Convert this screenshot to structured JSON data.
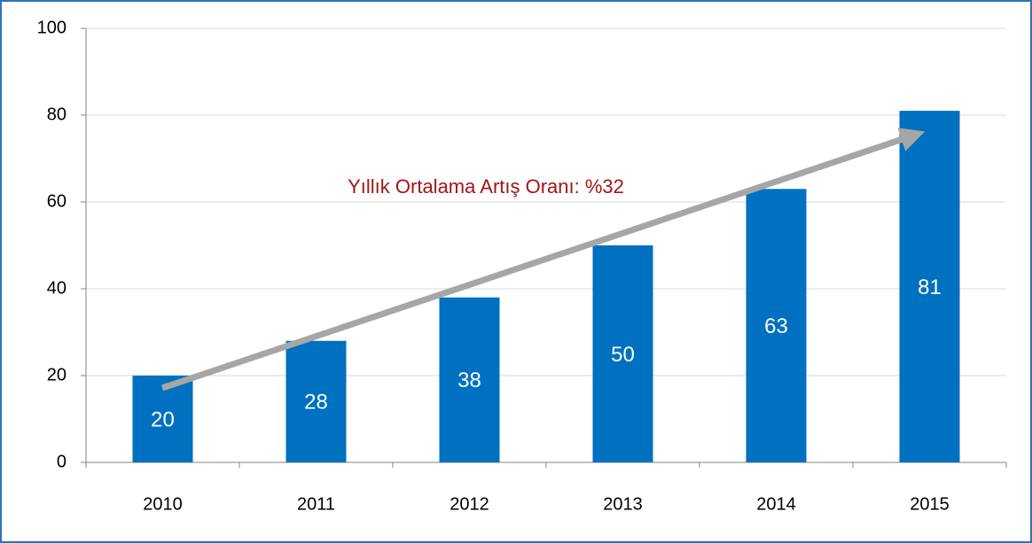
{
  "chart_data": {
    "type": "bar",
    "categories": [
      "2010",
      "2011",
      "2012",
      "2013",
      "2014",
      "2015"
    ],
    "values": [
      20,
      28,
      38,
      50,
      63,
      81
    ],
    "color": "#0070c0",
    "ylim": [
      0,
      100
    ],
    "yticks": [
      0,
      20,
      40,
      60,
      80,
      100
    ],
    "grid": true,
    "annotation": "Yıllık Ortalama Artış Oranı: %32"
  }
}
